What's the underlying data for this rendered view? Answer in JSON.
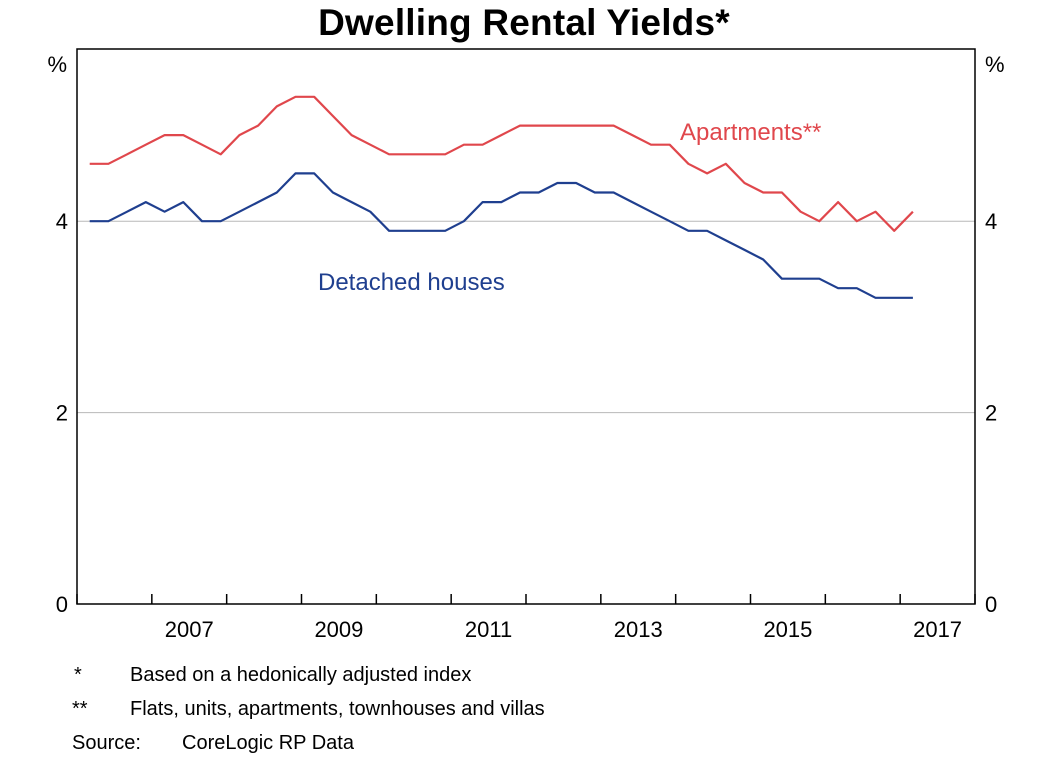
{
  "chart_data": {
    "type": "line",
    "title": "Dwelling Rental Yields*",
    "y_unit_left": "%",
    "y_unit_right": "%",
    "ylim": [
      0,
      5.8
    ],
    "y_ticks": [
      0,
      2,
      4
    ],
    "xlim": [
      2006.0,
      2018.0
    ],
    "x_tick_labels": [
      "2007",
      "2009",
      "2011",
      "2013",
      "2015",
      "2017"
    ],
    "grid": true,
    "series": [
      {
        "name": "Apartments**",
        "color": "#e0474c",
        "x": [
          2006.17,
          2006.42,
          2006.67,
          2006.92,
          2007.17,
          2007.42,
          2007.67,
          2007.92,
          2008.17,
          2008.42,
          2008.67,
          2008.92,
          2009.17,
          2009.42,
          2009.67,
          2009.92,
          2010.17,
          2010.42,
          2010.67,
          2010.92,
          2011.17,
          2011.42,
          2011.67,
          2011.92,
          2012.17,
          2012.42,
          2012.67,
          2012.92,
          2013.17,
          2013.42,
          2013.67,
          2013.92,
          2014.17,
          2014.42,
          2014.67,
          2014.92,
          2015.17,
          2015.42,
          2015.67,
          2015.92,
          2016.17,
          2016.42,
          2016.67,
          2016.92,
          2017.17
        ],
        "values": [
          4.6,
          4.6,
          4.7,
          4.8,
          4.9,
          4.9,
          4.8,
          4.7,
          4.9,
          5.0,
          5.2,
          5.3,
          5.3,
          5.1,
          4.9,
          4.8,
          4.7,
          4.7,
          4.7,
          4.7,
          4.8,
          4.8,
          4.9,
          5.0,
          5.0,
          5.0,
          5.0,
          5.0,
          5.0,
          4.9,
          4.8,
          4.8,
          4.6,
          4.5,
          4.6,
          4.4,
          4.3,
          4.3,
          4.1,
          4.0,
          4.2,
          4.0,
          4.1,
          3.9,
          4.1
        ]
      },
      {
        "name": "Detached houses",
        "color": "#1f3f8f",
        "x": [
          2006.17,
          2006.42,
          2006.67,
          2006.92,
          2007.17,
          2007.42,
          2007.67,
          2007.92,
          2008.17,
          2008.42,
          2008.67,
          2008.92,
          2009.17,
          2009.42,
          2009.67,
          2009.92,
          2010.17,
          2010.42,
          2010.67,
          2010.92,
          2011.17,
          2011.42,
          2011.67,
          2011.92,
          2012.17,
          2012.42,
          2012.67,
          2012.92,
          2013.17,
          2013.42,
          2013.67,
          2013.92,
          2014.17,
          2014.42,
          2014.67,
          2014.92,
          2015.17,
          2015.42,
          2015.67,
          2015.92,
          2016.17,
          2016.42,
          2016.67,
          2016.92,
          2017.17
        ],
        "values": [
          4.0,
          4.0,
          4.1,
          4.2,
          4.1,
          4.2,
          4.0,
          4.0,
          4.1,
          4.2,
          4.3,
          4.5,
          4.5,
          4.3,
          4.2,
          4.1,
          3.9,
          3.9,
          3.9,
          3.9,
          4.0,
          4.2,
          4.2,
          4.3,
          4.3,
          4.4,
          4.4,
          4.3,
          4.3,
          4.2,
          4.1,
          4.0,
          3.9,
          3.9,
          3.8,
          3.7,
          3.6,
          3.4,
          3.4,
          3.4,
          3.3,
          3.3,
          3.2,
          3.2,
          3.2
        ]
      }
    ],
    "series_labels": {
      "apartments": "Apartments**",
      "houses": "Detached houses"
    }
  },
  "notes": {
    "note1_mark": "*",
    "note1_text": "Based on a hedonically adjusted index",
    "note2_mark": "**",
    "note2_text": "Flats, units, apartments, townhouses and villas",
    "source_label": "Source:",
    "source_text": "CoreLogic RP Data"
  }
}
